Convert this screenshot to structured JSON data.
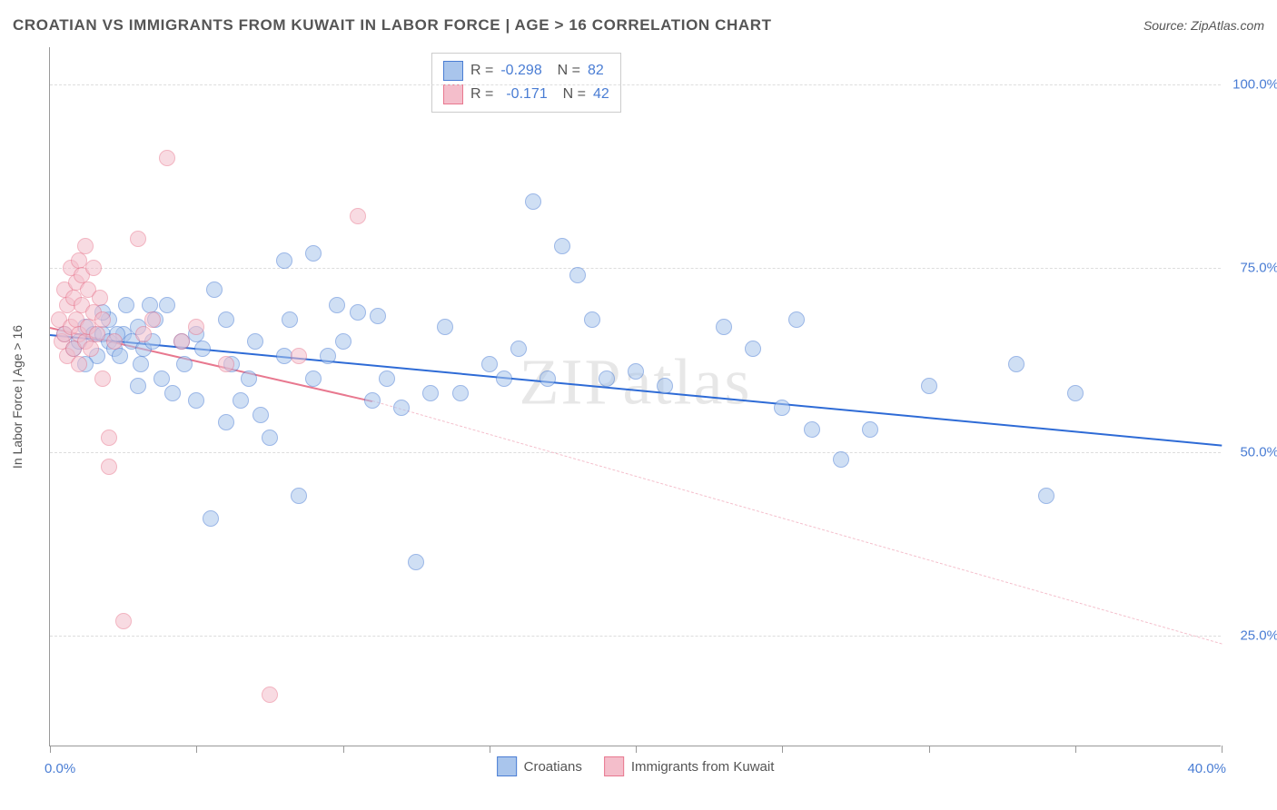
{
  "title": "CROATIAN VS IMMIGRANTS FROM KUWAIT IN LABOR FORCE | AGE > 16 CORRELATION CHART",
  "source": "Source: ZipAtlas.com",
  "y_axis_label": "In Labor Force | Age > 16",
  "watermark": "ZIPatlas",
  "chart": {
    "type": "scatter",
    "x_domain": [
      0,
      40
    ],
    "y_domain": [
      10,
      105
    ],
    "background_color": "#ffffff",
    "grid_color": "#dddddd",
    "y_ticks": [
      25,
      50,
      75,
      100
    ],
    "y_tick_labels": [
      "25.0%",
      "50.0%",
      "75.0%",
      "100.0%"
    ],
    "x_ticks": [
      0,
      5,
      10,
      15,
      20,
      25,
      30,
      35,
      40
    ],
    "x_label_min": "0.0%",
    "x_label_max": "40.0%",
    "marker_radius": 9,
    "marker_opacity": 0.55
  },
  "series": [
    {
      "name": "Croatians",
      "color_fill": "#a9c5ec",
      "color_stroke": "#4a7dd4",
      "stats": {
        "R": "-0.298",
        "N": "82"
      },
      "trend": {
        "x1": 0,
        "y1": 66,
        "x2": 40,
        "y2": 51,
        "stroke": "#2e6bd6",
        "width": 2.5,
        "dash": "none"
      },
      "points": [
        [
          0.5,
          66
        ],
        [
          0.8,
          64
        ],
        [
          1.0,
          65
        ],
        [
          1.2,
          67
        ],
        [
          1.5,
          66
        ],
        [
          1.6,
          63
        ],
        [
          1.8,
          66
        ],
        [
          2.0,
          65
        ],
        [
          2.0,
          68
        ],
        [
          2.2,
          64
        ],
        [
          2.4,
          63
        ],
        [
          2.5,
          66
        ],
        [
          2.6,
          70
        ],
        [
          2.8,
          65
        ],
        [
          3.0,
          59
        ],
        [
          3.0,
          67
        ],
        [
          3.2,
          64
        ],
        [
          3.4,
          70
        ],
        [
          3.5,
          65
        ],
        [
          3.6,
          68
        ],
        [
          3.8,
          60
        ],
        [
          4.0,
          70
        ],
        [
          4.2,
          58
        ],
        [
          4.5,
          65
        ],
        [
          4.6,
          62
        ],
        [
          5.0,
          57
        ],
        [
          5.0,
          66
        ],
        [
          5.2,
          64
        ],
        [
          5.5,
          41
        ],
        [
          5.6,
          72
        ],
        [
          6.0,
          68
        ],
        [
          6.0,
          54
        ],
        [
          6.2,
          62
        ],
        [
          6.5,
          57
        ],
        [
          6.8,
          60
        ],
        [
          7.0,
          65
        ],
        [
          7.2,
          55
        ],
        [
          7.5,
          52
        ],
        [
          8.0,
          76
        ],
        [
          8.0,
          63
        ],
        [
          8.2,
          68
        ],
        [
          8.5,
          44
        ],
        [
          9.0,
          77
        ],
        [
          9.0,
          60
        ],
        [
          9.5,
          63
        ],
        [
          9.8,
          70
        ],
        [
          10.0,
          65
        ],
        [
          10.5,
          69
        ],
        [
          11.0,
          57
        ],
        [
          11.2,
          68.5
        ],
        [
          11.5,
          60
        ],
        [
          12.0,
          56
        ],
        [
          12.5,
          35
        ],
        [
          13.0,
          58
        ],
        [
          13.5,
          67
        ],
        [
          14.0,
          58
        ],
        [
          15.0,
          62
        ],
        [
          15.5,
          60
        ],
        [
          16.0,
          64
        ],
        [
          16.5,
          84
        ],
        [
          17.0,
          60
        ],
        [
          17.5,
          78
        ],
        [
          18.0,
          74
        ],
        [
          18.5,
          68
        ],
        [
          19.0,
          60
        ],
        [
          20.0,
          61
        ],
        [
          21.0,
          59
        ],
        [
          23.0,
          67
        ],
        [
          24.0,
          64
        ],
        [
          25.0,
          56
        ],
        [
          25.5,
          68
        ],
        [
          26.0,
          53
        ],
        [
          27.0,
          49
        ],
        [
          28.0,
          53
        ],
        [
          30.0,
          59
        ],
        [
          33.0,
          62
        ],
        [
          34.0,
          44
        ],
        [
          35.0,
          58
        ],
        [
          1.2,
          62
        ],
        [
          1.8,
          69
        ],
        [
          2.3,
          66
        ],
        [
          3.1,
          62
        ]
      ]
    },
    {
      "name": "Immigrants from Kuwait",
      "color_fill": "#f4becb",
      "color_stroke": "#e8788f",
      "stats": {
        "R": "-0.171",
        "N": "42"
      },
      "trend": {
        "x1": 0,
        "y1": 67,
        "x2": 11,
        "y2": 57,
        "stroke": "#e8788f",
        "width": 2.5,
        "dash": "none"
      },
      "trend_ext": {
        "x1": 11,
        "y1": 57,
        "x2": 40,
        "y2": 24,
        "stroke": "#f4becb",
        "width": 1,
        "dash": "5,5"
      },
      "points": [
        [
          0.3,
          68
        ],
        [
          0.4,
          65
        ],
        [
          0.5,
          66
        ],
        [
          0.5,
          72
        ],
        [
          0.6,
          70
        ],
        [
          0.6,
          63
        ],
        [
          0.7,
          75
        ],
        [
          0.7,
          67
        ],
        [
          0.8,
          71
        ],
        [
          0.8,
          64
        ],
        [
          0.9,
          73
        ],
        [
          0.9,
          68
        ],
        [
          1.0,
          76
        ],
        [
          1.0,
          66
        ],
        [
          1.0,
          62
        ],
        [
          1.1,
          70
        ],
        [
          1.1,
          74
        ],
        [
          1.2,
          65
        ],
        [
          1.2,
          78
        ],
        [
          1.3,
          72
        ],
        [
          1.3,
          67
        ],
        [
          1.4,
          64
        ],
        [
          1.5,
          75
        ],
        [
          1.5,
          69
        ],
        [
          1.6,
          66
        ],
        [
          1.7,
          71
        ],
        [
          1.8,
          60
        ],
        [
          1.8,
          68
        ],
        [
          2.0,
          48
        ],
        [
          2.0,
          52
        ],
        [
          2.2,
          65
        ],
        [
          2.5,
          27
        ],
        [
          3.0,
          79
        ],
        [
          3.2,
          66
        ],
        [
          3.5,
          68
        ],
        [
          4.0,
          90
        ],
        [
          4.5,
          65
        ],
        [
          5.0,
          67
        ],
        [
          6.0,
          62
        ],
        [
          7.5,
          17
        ],
        [
          8.5,
          63
        ],
        [
          10.5,
          82
        ]
      ]
    }
  ],
  "bottom_legend": [
    {
      "label": "Croatians",
      "fill": "#a9c5ec",
      "stroke": "#4a7dd4"
    },
    {
      "label": "Immigrants from Kuwait",
      "fill": "#f4becb",
      "stroke": "#e8788f"
    }
  ]
}
